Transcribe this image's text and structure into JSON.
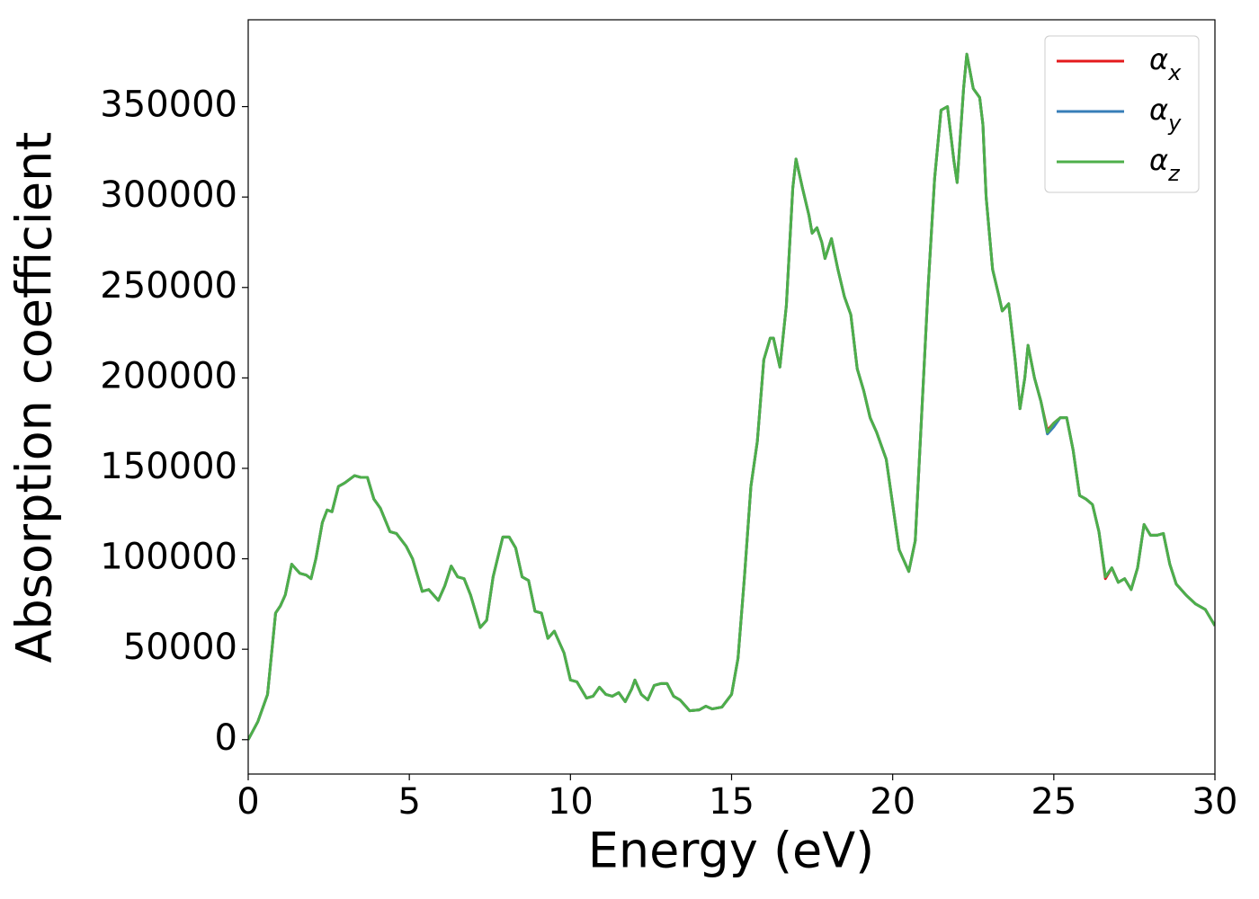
{
  "chart_data": {
    "type": "line",
    "xlabel": "Energy (eV)",
    "ylabel": "Absorption coefficient",
    "x": [
      0,
      0.3,
      0.6,
      0.85,
      1.0,
      1.15,
      1.35,
      1.6,
      1.8,
      1.95,
      2.1,
      2.3,
      2.45,
      2.6,
      2.8,
      3.0,
      3.3,
      3.5,
      3.7,
      3.9,
      4.1,
      4.4,
      4.6,
      4.9,
      5.1,
      5.4,
      5.6,
      5.9,
      6.1,
      6.3,
      6.5,
      6.7,
      6.9,
      7.2,
      7.4,
      7.6,
      7.9,
      8.1,
      8.3,
      8.5,
      8.7,
      8.9,
      9.1,
      9.3,
      9.5,
      9.8,
      10.0,
      10.2,
      10.5,
      10.7,
      10.9,
      11.1,
      11.3,
      11.5,
      11.7,
      11.9,
      12.0,
      12.2,
      12.4,
      12.6,
      12.8,
      13.0,
      13.2,
      13.4,
      13.7,
      14.0,
      14.2,
      14.4,
      14.7,
      15.0,
      15.2,
      15.4,
      15.6,
      15.8,
      16.0,
      16.2,
      16.3,
      16.5,
      16.7,
      16.9,
      17.0,
      17.2,
      17.4,
      17.5,
      17.65,
      17.8,
      17.9,
      18.1,
      18.3,
      18.5,
      18.7,
      18.9,
      19.1,
      19.3,
      19.5,
      19.8,
      20.0,
      20.2,
      20.5,
      20.7,
      20.9,
      21.1,
      21.3,
      21.5,
      21.7,
      21.9,
      22.0,
      22.2,
      22.3,
      22.5,
      22.7,
      22.8,
      22.9,
      23.1,
      23.3,
      23.4,
      23.6,
      23.8,
      23.95,
      24.1,
      24.2,
      24.4,
      24.6,
      24.8,
      25.0,
      25.2,
      25.4,
      25.6,
      25.8,
      26.0,
      26.2,
      26.4,
      26.6,
      26.8,
      27.0,
      27.2,
      27.4,
      27.6,
      27.8,
      28.0,
      28.2,
      28.4,
      28.6,
      28.8,
      29.1,
      29.4,
      29.7,
      30.0
    ],
    "series": [
      {
        "name": "α_x",
        "color": "#e41a1c",
        "values": [
          0,
          10000,
          25000,
          70000,
          74000,
          80000,
          97000,
          92000,
          91000,
          89000,
          100000,
          120000,
          127000,
          126000,
          140000,
          142000,
          146000,
          145000,
          145000,
          133000,
          128000,
          115000,
          114000,
          107000,
          100000,
          82000,
          83000,
          77000,
          85000,
          96000,
          90000,
          89000,
          80000,
          62000,
          66000,
          90000,
          112000,
          112000,
          106000,
          90000,
          88000,
          71000,
          70000,
          56000,
          60000,
          48000,
          33000,
          32000,
          23000,
          24000,
          29000,
          25000,
          24000,
          26000,
          21000,
          28000,
          33000,
          25000,
          22000,
          30000,
          31000,
          31000,
          24000,
          22000,
          16000,
          16500,
          18500,
          17000,
          18000,
          25000,
          45000,
          90000,
          140000,
          165000,
          210000,
          222000,
          222000,
          206000,
          240000,
          305000,
          321000,
          305000,
          290000,
          280000,
          283000,
          275000,
          266000,
          277000,
          260000,
          245000,
          235000,
          205000,
          193000,
          178000,
          170000,
          155000,
          130000,
          105000,
          93000,
          110000,
          180000,
          250000,
          310000,
          348000,
          350000,
          320000,
          308000,
          360000,
          379000,
          360000,
          355000,
          340000,
          300000,
          260000,
          245000,
          237000,
          241000,
          210000,
          183000,
          200000,
          218000,
          200000,
          187000,
          171000,
          175000,
          178000,
          178000,
          160000,
          135000,
          133000,
          130000,
          115000,
          89000,
          95000,
          87000,
          89000,
          83000,
          95000,
          119000,
          113000,
          113000,
          114000,
          97000,
          86000,
          80000,
          75000,
          72000,
          63000
        ]
      },
      {
        "name": "α_y",
        "color": "#377eb8",
        "values": [
          0,
          10000,
          25000,
          70000,
          74000,
          80000,
          97000,
          92000,
          91000,
          89000,
          100000,
          120000,
          127000,
          126000,
          140000,
          142000,
          146000,
          145000,
          145000,
          133000,
          128000,
          115000,
          114000,
          107000,
          100000,
          82000,
          83000,
          77000,
          85000,
          96000,
          90000,
          89000,
          80000,
          62000,
          66000,
          90000,
          112000,
          112000,
          106000,
          90000,
          88000,
          71000,
          70000,
          56000,
          60000,
          48000,
          33000,
          32000,
          23000,
          24000,
          29000,
          25000,
          24000,
          26000,
          21000,
          28000,
          33000,
          25000,
          22000,
          30000,
          31000,
          31000,
          24000,
          22000,
          16000,
          16500,
          18500,
          17000,
          18000,
          25000,
          45000,
          90000,
          140000,
          165000,
          210000,
          222000,
          222000,
          206000,
          240000,
          305000,
          321000,
          305000,
          290000,
          280000,
          283000,
          275000,
          266000,
          277000,
          260000,
          245000,
          235000,
          205000,
          193000,
          178000,
          170000,
          155000,
          130000,
          105000,
          93000,
          110000,
          180000,
          250000,
          310000,
          348000,
          350000,
          320000,
          308000,
          360000,
          379000,
          360000,
          355000,
          340000,
          300000,
          260000,
          245000,
          237000,
          241000,
          210000,
          183000,
          200000,
          218000,
          200000,
          187000,
          169000,
          173000,
          178000,
          178000,
          160000,
          135000,
          133000,
          130000,
          115000,
          90000,
          95000,
          87000,
          89000,
          83000,
          95000,
          119000,
          113000,
          113000,
          114000,
          97000,
          86000,
          80000,
          75000,
          72000,
          63000
        ]
      },
      {
        "name": "α_z",
        "color": "#4daf4a",
        "values": [
          0,
          10000,
          25000,
          70000,
          74000,
          80000,
          97000,
          92000,
          91000,
          89000,
          100000,
          120000,
          127000,
          126000,
          140000,
          142000,
          146000,
          145000,
          145000,
          133000,
          128000,
          115000,
          114000,
          107000,
          100000,
          82000,
          83000,
          77000,
          85000,
          96000,
          90000,
          89000,
          80000,
          62000,
          66000,
          90000,
          112000,
          112000,
          106000,
          90000,
          88000,
          71000,
          70000,
          56000,
          60000,
          48000,
          33000,
          32000,
          23000,
          24000,
          29000,
          25000,
          24000,
          26000,
          21000,
          28000,
          33000,
          25000,
          22000,
          30000,
          31000,
          31000,
          24000,
          22000,
          16000,
          16500,
          18500,
          17000,
          18000,
          25000,
          45000,
          90000,
          140000,
          165000,
          210000,
          222000,
          222000,
          206000,
          240000,
          305000,
          321000,
          305000,
          290000,
          280000,
          283000,
          275000,
          266000,
          277000,
          260000,
          245000,
          235000,
          205000,
          193000,
          178000,
          170000,
          155000,
          130000,
          105000,
          93000,
          110000,
          180000,
          250000,
          310000,
          348000,
          350000,
          320000,
          308000,
          360000,
          379000,
          360000,
          355000,
          340000,
          300000,
          260000,
          245000,
          237000,
          241000,
          210000,
          183000,
          200000,
          218000,
          200000,
          187000,
          170000,
          175000,
          178000,
          178000,
          160000,
          135000,
          133000,
          130000,
          115000,
          90000,
          95000,
          87000,
          89000,
          83000,
          95000,
          119000,
          113000,
          113000,
          114000,
          97000,
          86000,
          80000,
          75000,
          72000,
          63000
        ]
      }
    ],
    "xlim": [
      0,
      30
    ],
    "xticks": [
      0,
      5,
      10,
      15,
      20,
      25,
      30
    ],
    "ylim": [
      -19000,
      398000
    ],
    "yticks": [
      0,
      50000,
      100000,
      150000,
      200000,
      250000,
      300000,
      350000
    ],
    "grid": false,
    "legend": "upper right"
  }
}
